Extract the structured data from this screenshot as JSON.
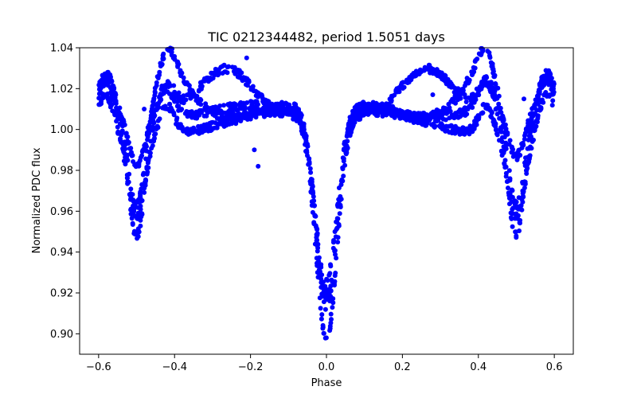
{
  "chart_data": {
    "type": "scatter",
    "title": "TIC 0212344482, period 1.5051 days",
    "xlabel": "Phase",
    "ylabel": "Normalized PDC flux",
    "xlim": [
      -0.65,
      0.65
    ],
    "ylim": [
      0.89,
      1.04
    ],
    "xticks": [
      -0.6,
      -0.4,
      -0.2,
      0.0,
      0.2,
      0.4,
      0.6
    ],
    "xtick_labels": [
      "−0.6",
      "−0.4",
      "−0.2",
      "0.0",
      "0.2",
      "0.4",
      "0.6"
    ],
    "yticks": [
      0.9,
      0.92,
      0.94,
      0.96,
      0.98,
      1.0,
      1.02,
      1.04
    ],
    "ytick_labels": [
      "0.90",
      "0.92",
      "0.94",
      "0.96",
      "0.98",
      "1.00",
      "1.02",
      "1.04"
    ],
    "grid": false,
    "marker_color": "#0000ff",
    "series": [
      {
        "name": "PDC flux",
        "description": "folded light curve; eclipsing binary with primary eclipse at phase 0 and secondary eclipses at +/-0.5, out-of-eclipse variability with several branches",
        "points_profile": [
          {
            "x": -0.6,
            "y": 1.022
          },
          {
            "x": -0.58,
            "y": 1.028
          },
          {
            "x": -0.56,
            "y": 1.015
          },
          {
            "x": -0.54,
            "y": 0.998
          },
          {
            "x": -0.52,
            "y": 0.985
          },
          {
            "x": -0.5,
            "y": 0.965
          },
          {
            "x": -0.48,
            "y": 0.975
          },
          {
            "x": -0.46,
            "y": 0.99
          },
          {
            "x": -0.44,
            "y": 1.008
          },
          {
            "x": -0.42,
            "y": 1.024
          },
          {
            "x": -0.4,
            "y": 1.018
          },
          {
            "x": -0.35,
            "y": 1.01
          },
          {
            "x": -0.3,
            "y": 1.022
          },
          {
            "x": -0.25,
            "y": 1.031
          },
          {
            "x": -0.2,
            "y": 1.025
          },
          {
            "x": -0.15,
            "y": 1.015
          },
          {
            "x": -0.1,
            "y": 1.012
          },
          {
            "x": -0.07,
            "y": 1.005
          },
          {
            "x": -0.05,
            "y": 0.98
          },
          {
            "x": -0.03,
            "y": 0.955
          },
          {
            "x": -0.01,
            "y": 0.925
          },
          {
            "x": 0.0,
            "y": 0.9
          },
          {
            "x": 0.01,
            "y": 0.92
          },
          {
            "x": 0.03,
            "y": 0.955
          },
          {
            "x": 0.05,
            "y": 0.985
          },
          {
            "x": 0.07,
            "y": 1.015
          },
          {
            "x": 0.1,
            "y": 1.012
          },
          {
            "x": 0.15,
            "y": 1.015
          },
          {
            "x": 0.2,
            "y": 1.025
          },
          {
            "x": 0.25,
            "y": 1.031
          },
          {
            "x": 0.3,
            "y": 1.022
          },
          {
            "x": 0.35,
            "y": 1.01
          },
          {
            "x": 0.4,
            "y": 1.018
          },
          {
            "x": 0.42,
            "y": 1.024
          },
          {
            "x": 0.44,
            "y": 1.008
          },
          {
            "x": 0.46,
            "y": 0.99
          },
          {
            "x": 0.48,
            "y": 0.975
          },
          {
            "x": 0.5,
            "y": 0.965
          },
          {
            "x": 0.52,
            "y": 0.985
          },
          {
            "x": 0.54,
            "y": 0.998
          },
          {
            "x": 0.56,
            "y": 1.015
          },
          {
            "x": 0.58,
            "y": 1.028
          },
          {
            "x": 0.6,
            "y": 1.022
          }
        ]
      }
    ]
  }
}
